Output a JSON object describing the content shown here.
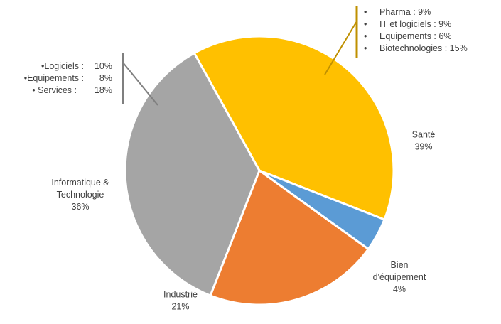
{
  "chart_data": {
    "type": "pie",
    "title": "",
    "slices": [
      {
        "label": "Santé",
        "percent_label": "39%",
        "value": 39,
        "color": "#FFC000"
      },
      {
        "label": "Bien d'équipement",
        "label_lines": [
          "Bien",
          "d'équipement"
        ],
        "percent_label": "4%",
        "value": 4,
        "color": "#5B9BD5"
      },
      {
        "label": "Industrie",
        "percent_label": "21%",
        "value": 21,
        "color": "#ED7D31"
      },
      {
        "label": "Informatique & Technologie",
        "label_lines": [
          "Informatique &",
          "Technologie"
        ],
        "percent_label": "36%",
        "value": 36,
        "color": "#A5A5A5"
      }
    ],
    "callouts": {
      "sante": [
        {
          "bullet": "•",
          "text": "Pharma : 9%"
        },
        {
          "bullet": "•",
          "text": "IT et logiciels : 9%"
        },
        {
          "bullet": "•",
          "text": "Equipements : 6%"
        },
        {
          "bullet": "•",
          "text": "Biotechnologies : 15%"
        }
      ],
      "informatique": [
        {
          "key": "•Logiciels :",
          "value": "10%"
        },
        {
          "key": "•Equipements :",
          "value": "8%"
        },
        {
          "key": "• Services :",
          "value": "18%"
        }
      ]
    },
    "legend": "none"
  }
}
